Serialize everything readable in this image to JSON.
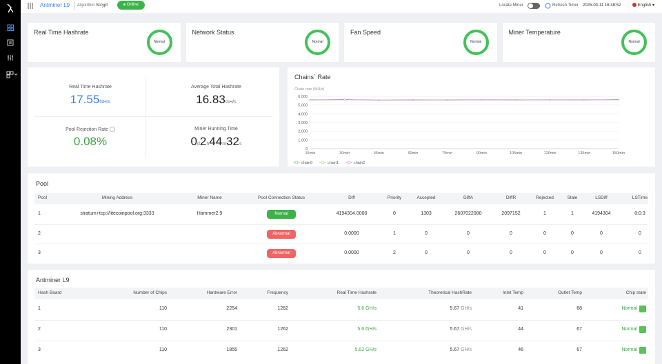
{
  "header": {
    "device": "Antminer L9",
    "algorithm_label": "Algorithm",
    "algorithm": "Scrypt",
    "status": "Online",
    "locate_label": "Locate Miner",
    "refresh_label": "Refresh Timer",
    "refresh_time": "2025-03-11 16:48:52",
    "language": "English"
  },
  "status_cards": [
    {
      "title": "Real Time Hashrate",
      "state": "Normal"
    },
    {
      "title": "Network Status",
      "state": "Normal"
    },
    {
      "title": "Fan Speed",
      "state": "Normal"
    },
    {
      "title": "Miner Temperature",
      "state": "Normal"
    }
  ],
  "stats": {
    "realtime": {
      "label": "Real Time Hashrate",
      "value": "17.55",
      "unit": "GH/s"
    },
    "average": {
      "label": "Average Total Hashrate",
      "value": "16.83",
      "unit": "GH/s"
    },
    "rejection": {
      "label": "Pool Rejection Rate",
      "value": "0.08%"
    },
    "running": {
      "label": "Miner Running Time",
      "parts": [
        {
          "value": "0",
          "unit": "d"
        },
        {
          "value": "2",
          "unit": "h"
        },
        {
          "value": "44",
          "unit": "m"
        },
        {
          "value": "32",
          "unit": "s"
        }
      ]
    }
  },
  "chains_chart": {
    "type": "line",
    "title": "Chains` Rate",
    "y_label": "Chain rate (MH/s)",
    "categories": [
      "15min",
      "30min",
      "45min",
      "60min",
      "75min",
      "90min",
      "105min",
      "120min",
      "135min",
      "150min"
    ],
    "series": [
      {
        "name": "chain0",
        "color": "#73c96a",
        "values": [
          5580,
          5640,
          5560,
          5580,
          5590,
          5600,
          5580,
          5600,
          5580,
          5640
        ]
      },
      {
        "name": "chain1",
        "color": "#a6d86a",
        "values": [
          5590,
          5620,
          5570,
          5590,
          5600,
          5590,
          5590,
          5610,
          5590,
          5630
        ]
      },
      {
        "name": "chain2",
        "color": "#c77dd7",
        "values": [
          5600,
          5630,
          5580,
          5600,
          5580,
          5610,
          5600,
          5590,
          5600,
          5620
        ]
      }
    ],
    "ylim": [
      0,
      6000
    ],
    "yticks": [
      0,
      {
        "value": 1000,
        "label": "1,000"
      },
      {
        "value": 2000,
        "label": "2,000"
      },
      {
        "value": 3000,
        "label": "3,000"
      },
      {
        "value": 4000,
        "label": "4,000"
      },
      {
        "value": 5000,
        "label": "5,000"
      },
      {
        "value": 6000,
        "label": "6,000"
      }
    ],
    "grid": true
  },
  "pool": {
    "title": "Pool",
    "columns": [
      "Pool",
      "Mining Address",
      "Miner Name",
      "Pool Connection Status",
      "Diff",
      "Priority",
      "Accepted",
      "DiffA",
      "DiffR",
      "Rejected",
      "Stale",
      "LSDiff",
      "LSTime"
    ],
    "rows": [
      [
        "1",
        "stratum+tcp://litecoinpool.org:3333",
        "Hammer2.9",
        "Normal",
        "4194304.0000",
        "0",
        "1303",
        "2607022080",
        "2097152",
        "1",
        "1",
        "4194304",
        "0:0:3"
      ],
      [
        "2",
        null,
        null,
        "Abnormal",
        "0.0000",
        "1",
        "0",
        "0",
        "0",
        "0",
        "0",
        "0",
        "0"
      ],
      [
        "3",
        null,
        null,
        "Abnormal",
        "0.0000",
        "2",
        "0",
        "0",
        "0",
        "0",
        "0",
        "0",
        "0"
      ]
    ]
  },
  "hashboards": {
    "title": "Antminer L9",
    "columns": [
      "Hash Board",
      "Number of Chips",
      "Hardware Error",
      "Frequency",
      "Real Time Hashrate",
      "Theoretical HashRate",
      "Inlet Temp",
      "Outlet Temp",
      "Chip state"
    ],
    "rows": [
      [
        "1",
        "110",
        "2254",
        "1262",
        {
          "value": "5.6",
          "unit": "GH/s"
        },
        {
          "value": "5.67",
          "unit": "GH/s"
        },
        "41",
        "68",
        "Normal"
      ],
      [
        "2",
        "110",
        "2301",
        "1262",
        {
          "value": "5.6",
          "unit": "GH/s"
        },
        {
          "value": "5.67",
          "unit": "GH/s"
        },
        "44",
        "67",
        "Normal"
      ],
      [
        "3",
        "110",
        "1855",
        "1262",
        {
          "value": "5.62",
          "unit": "GH/s"
        },
        {
          "value": "5.67",
          "unit": "GH/s"
        },
        "46",
        "67",
        "Normal"
      ]
    ]
  }
}
